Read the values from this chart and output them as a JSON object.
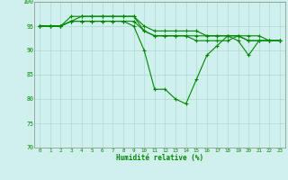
{
  "xlabel": "Humidité relative (%)",
  "xlim": [
    -0.5,
    23.5
  ],
  "ylim": [
    70,
    100
  ],
  "yticks": [
    70,
    75,
    80,
    85,
    90,
    95,
    100
  ],
  "xticks": [
    0,
    1,
    2,
    3,
    4,
    5,
    6,
    7,
    8,
    9,
    10,
    11,
    12,
    13,
    14,
    15,
    16,
    17,
    18,
    19,
    20,
    21,
    22,
    23
  ],
  "bg_color": "#cff0ec",
  "grid_color": "#aed8d2",
  "line_color": "#008800",
  "series": [
    [
      95,
      95,
      95,
      96,
      96,
      96,
      96,
      96,
      96,
      95,
      90,
      82,
      82,
      80,
      79,
      84,
      89,
      91,
      93,
      92,
      89,
      92,
      92,
      92
    ],
    [
      95,
      95,
      95,
      96,
      97,
      97,
      97,
      97,
      97,
      97,
      94,
      93,
      93,
      93,
      93,
      93,
      93,
      93,
      93,
      93,
      93,
      93,
      92,
      92
    ],
    [
      95,
      95,
      95,
      97,
      97,
      97,
      97,
      97,
      97,
      97,
      95,
      94,
      94,
      94,
      94,
      94,
      93,
      93,
      93,
      93,
      92,
      92,
      92,
      92
    ],
    [
      95,
      95,
      95,
      96,
      96,
      96,
      96,
      96,
      96,
      96,
      94,
      93,
      93,
      93,
      93,
      92,
      92,
      92,
      92,
      93,
      92,
      92,
      92,
      92
    ]
  ],
  "figsize": [
    3.2,
    2.0
  ],
  "dpi": 100
}
